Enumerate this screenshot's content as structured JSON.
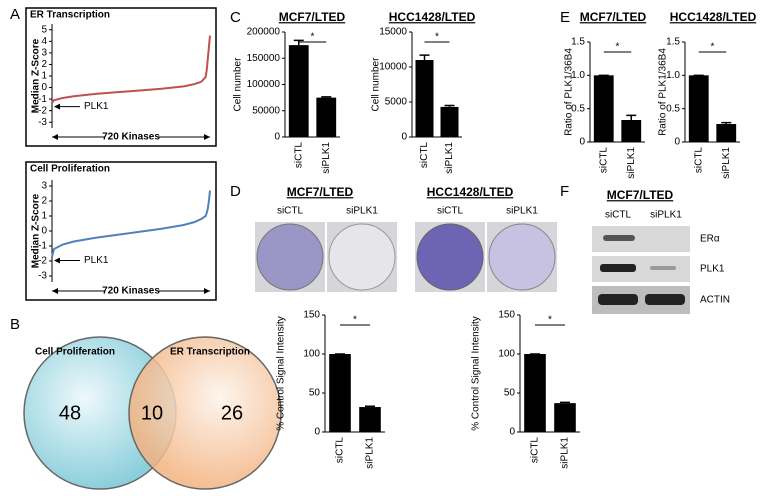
{
  "panels": [
    "A",
    "B",
    "C",
    "D",
    "E",
    "F"
  ],
  "chart_data": [
    {
      "type": "line",
      "title": "ER Transcription",
      "y_label": "Median Z-Score",
      "x_label": "720 Kinases",
      "annotation": "PLK1",
      "color": "#c0504d",
      "x": [
        1,
        10,
        50,
        100,
        200,
        300,
        400,
        500,
        600,
        650,
        680,
        700,
        705,
        710,
        715,
        720
      ],
      "values": [
        -1.3,
        -1.1,
        -0.9,
        -0.75,
        -0.55,
        -0.4,
        -0.25,
        -0.1,
        0.1,
        0.3,
        0.5,
        0.9,
        1.5,
        2.5,
        3.5,
        4.5
      ],
      "xlim": [
        1,
        720
      ],
      "ylim": [
        -3.5,
        5.5
      ],
      "yticks": [
        -3,
        -2,
        -1,
        0,
        1,
        2,
        3,
        4,
        5
      ]
    },
    {
      "type": "line",
      "title": "Cell Proliferation",
      "y_label": "Median Z-Score",
      "x_label": "720 Kinases",
      "annotation": "PLK1",
      "color": "#4f81bd",
      "x": [
        1,
        10,
        50,
        100,
        200,
        300,
        400,
        500,
        600,
        650,
        680,
        700,
        705,
        710,
        715,
        720
      ],
      "values": [
        -1.7,
        -1.2,
        -0.9,
        -0.7,
        -0.45,
        -0.25,
        -0.05,
        0.15,
        0.4,
        0.6,
        0.8,
        1.0,
        1.2,
        1.5,
        2.0,
        2.7
      ],
      "xlim": [
        1,
        720
      ],
      "ylim": [
        -3.4,
        3.4
      ],
      "yticks": [
        -3,
        -2,
        -1,
        0,
        1,
        2,
        3
      ]
    },
    {
      "type": "bar",
      "title": "MCF7/LTED",
      "y_label": "Cell number",
      "annotation": "*",
      "color": "#000000",
      "categories": [
        "siCTL",
        "siPLK1"
      ],
      "values": [
        175000,
        75000
      ],
      "errors": [
        9000,
        1500
      ],
      "ylim": [
        0,
        200000
      ],
      "yticks": [
        0,
        50000,
        100000,
        150000,
        200000
      ]
    },
    {
      "type": "bar",
      "title": "HCC1428/LTED",
      "y_label": "Cell number",
      "annotation": "*",
      "color": "#000000",
      "categories": [
        "siCTL",
        "siPLK1"
      ],
      "values": [
        11000,
        4300
      ],
      "errors": [
        700,
        200
      ],
      "ylim": [
        0,
        15000
      ],
      "yticks": [
        0,
        5000,
        10000,
        15000
      ]
    },
    {
      "type": "bar",
      "title": "MCF7/LTED",
      "y_label": "Ratio of PLK1/36B4",
      "annotation": "*",
      "color": "#000000",
      "categories": [
        "siCTL",
        "siPLK1"
      ],
      "values": [
        1.0,
        0.33
      ],
      "errors": [
        0,
        0.07
      ],
      "ylim": [
        0,
        1.5
      ],
      "yticks": [
        0,
        0.5,
        {
          "value": 1,
          "label": "1.0"
        },
        1.5
      ]
    },
    {
      "type": "bar",
      "title": "HCC1428/LTED",
      "y_label": "Ratio of PLK1/36B4",
      "annotation": "*",
      "color": "#000000",
      "categories": [
        "siCTL",
        "siPLK1"
      ],
      "values": [
        1.0,
        0.27
      ],
      "errors": [
        0,
        0.02
      ],
      "ylim": [
        0,
        1.5
      ],
      "yticks": [
        0,
        0.5,
        {
          "value": 1,
          "label": "1.0"
        },
        1.5
      ]
    },
    {
      "type": "bar",
      "y_label": "% Control Signal Intensity",
      "annotation": "*",
      "color": "#000000",
      "categories": [
        "siCTL",
        "siPLK1"
      ],
      "values": [
        100,
        32
      ],
      "errors": [
        0,
        1
      ],
      "ylim": [
        0,
        150
      ],
      "yticks": [
        0,
        50,
        100,
        150
      ]
    },
    {
      "type": "bar",
      "y_label": "% Control Signal Intensity",
      "annotation": "*",
      "color": "#000000",
      "categories": [
        "siCTL",
        "siPLK1"
      ],
      "values": [
        100,
        37
      ],
      "errors": [
        0,
        1
      ],
      "ylim": [
        0,
        150
      ],
      "yticks": [
        0,
        50,
        100,
        150
      ]
    }
  ],
  "venn": {
    "sets": [
      "Cell Proliferation",
      "ER Transcription"
    ],
    "counts": [
      "48",
      "10",
      "26"
    ]
  },
  "colony": [
    {
      "title": "MCF7/LTED",
      "lanes": [
        "siCTL",
        "siPLK1"
      ]
    },
    {
      "title": "HCC1428/LTED",
      "lanes": [
        "siCTL",
        "siPLK1"
      ]
    }
  ],
  "blot": {
    "title": "MCF7/LTED",
    "lanes": [
      "siCTL",
      "siPLK1"
    ],
    "rows": [
      "ERα",
      "PLK1",
      "ACTIN"
    ]
  }
}
